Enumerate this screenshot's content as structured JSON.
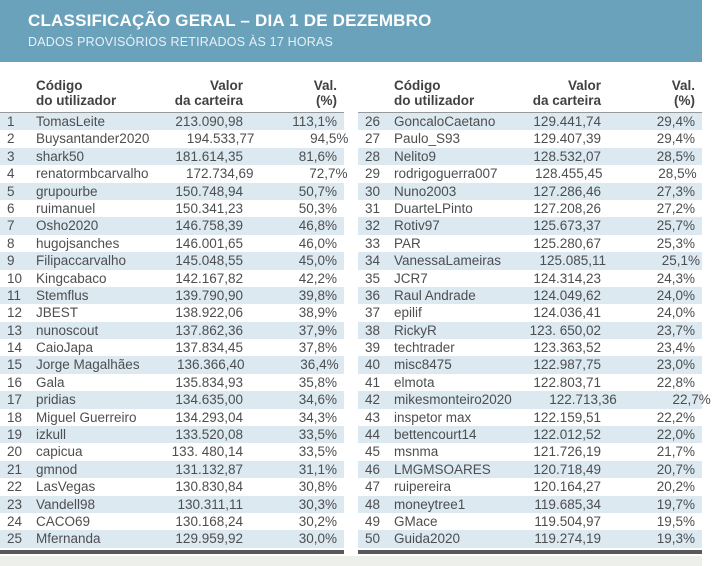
{
  "header": {
    "title": "CLASSIFICAÇÃO GERAL – DIA 1 DE DEZEMBRO",
    "subtitle": "DADOS PROVISÓRIOS RETIRADOS ÀS 17 HORAS"
  },
  "columns": {
    "user_line1": "Código",
    "user_line2": "do utilizador",
    "value_line1": "Valor",
    "value_line2": "da carteira",
    "pct_line1": "Val.",
    "pct_line2": "(%)"
  },
  "colors": {
    "header_bg": "#6AA2BC",
    "title_text": "#FFFFFF",
    "subtitle_text": "#E9F0F4",
    "row_stripe": "#DCE9F1",
    "row_text": "#4D4E50",
    "column_header_text": "#414042",
    "divider_line": "#97999B",
    "bottom_bar": "#58595B"
  },
  "chart_data": {
    "type": "table",
    "title": "CLASSIFICAÇÃO GERAL – DIA 1 DE DEZEMBRO",
    "subtitle": "DADOS PROVISÓRIOS RETIRADOS ÀS 17 HORAS",
    "columns": [
      "#",
      "Código do utilizador",
      "Valor da carteira",
      "Val. (%)"
    ],
    "rows_per_table": 25,
    "rows": [
      [
        "1",
        "TomasLeite",
        "213.090,98",
        "113,1%"
      ],
      [
        "2",
        "Buysantander2020",
        "194.533,77",
        "94,5%"
      ],
      [
        "3",
        "shark50",
        "181.614,35",
        "81,6%"
      ],
      [
        "4",
        "renatormbcarvalho",
        "172.734,69",
        "72,7%"
      ],
      [
        "5",
        "grupourbe",
        "150.748,94",
        "50,7%"
      ],
      [
        "6",
        "ruimanuel",
        "150.341,23",
        "50,3%"
      ],
      [
        "7",
        "Osho2020",
        "146.758,39",
        "46,8%"
      ],
      [
        "8",
        "hugojsanches",
        "146.001,65",
        "46,0%"
      ],
      [
        "9",
        "Filipaccarvalho",
        "145.048,55",
        "45,0%"
      ],
      [
        "10",
        "Kingcabaco",
        "142.167,82",
        "42,2%"
      ],
      [
        "11",
        "Stemflus",
        "139.790,90",
        "39,8%"
      ],
      [
        "12",
        "JBEST",
        "138.922,06",
        "38,9%"
      ],
      [
        "13",
        "nunoscout",
        "137.862,36",
        "37,9%"
      ],
      [
        "14",
        "CaioJapa",
        "137.834,45",
        "37,8%"
      ],
      [
        "15",
        "Jorge Magalhães",
        "136.366,40",
        "36,4%"
      ],
      [
        "16",
        "Gala",
        "135.834,93",
        "35,8%"
      ],
      [
        "17",
        "pridias",
        "134.635,00",
        "34,6%"
      ],
      [
        "18",
        "Miguel Guerreiro",
        "134.293,04",
        "34,3%"
      ],
      [
        "19",
        "izkull",
        "133.520,08",
        "33,5%"
      ],
      [
        "20",
        "capicua",
        "133. 480,14",
        "33,5%"
      ],
      [
        "21",
        "gmnod",
        "131.132,87",
        "31,1%"
      ],
      [
        "22",
        "LasVegas",
        "130.830,84",
        "30,8%"
      ],
      [
        "23",
        "Vandell98",
        "130.311,11",
        "30,3%"
      ],
      [
        "24",
        "CACO69",
        "130.168,24",
        "30,2%"
      ],
      [
        "25",
        "Mfernanda",
        "129.959,92",
        "30,0%"
      ],
      [
        "26",
        "GoncaloCaetano",
        "129.441,74",
        "29,4%"
      ],
      [
        "27",
        "Paulo_S93",
        "129.407,39",
        "29,4%"
      ],
      [
        "28",
        "Nelito9",
        "128.532,07",
        "28,5%"
      ],
      [
        "29",
        "rodrigoguerra007",
        "128.455,45",
        "28,5%"
      ],
      [
        "30",
        "Nuno2003",
        "127.286,46",
        "27,3%"
      ],
      [
        "31",
        "DuarteLPinto",
        "127.208,26",
        "27,2%"
      ],
      [
        "32",
        "Rotiv97",
        "125.673,37",
        "25,7%"
      ],
      [
        "33",
        "PAR",
        "125.280,67",
        "25,3%"
      ],
      [
        "34",
        "VanessaLameiras",
        "125.085,11",
        "25,1%"
      ],
      [
        "35",
        "JCR7",
        "124.314,23",
        "24,3%"
      ],
      [
        "36",
        "Raul Andrade",
        "124.049,62",
        "24,0%"
      ],
      [
        "37",
        "epilif",
        "124.036,41",
        "24,0%"
      ],
      [
        "38",
        "RickyR",
        "123. 650,02",
        "23,7%"
      ],
      [
        "39",
        "techtrader",
        "123.363,52",
        "23,4%"
      ],
      [
        "40",
        "misc8475",
        "122.987,75",
        "23,0%"
      ],
      [
        "41",
        "elmota",
        "122.803,71",
        "22,8%"
      ],
      [
        "42",
        "mikesmonteiro2020",
        "122.713,36",
        "22,7%"
      ],
      [
        "43",
        "inspetor max",
        "122.159,51",
        "22,2%"
      ],
      [
        "44",
        "bettencourt14",
        "122.012,52",
        "22,0%"
      ],
      [
        "45",
        "msnma",
        "121.726,19",
        "21,7%"
      ],
      [
        "46",
        "LMGMSOARES",
        "120.718,49",
        "20,7%"
      ],
      [
        "47",
        "ruipereira",
        "120.164,27",
        "20,2%"
      ],
      [
        "48",
        "moneytree1",
        "119.685,34",
        "19,7%"
      ],
      [
        "49",
        "GMace",
        "119.504,97",
        "19,5%"
      ],
      [
        "50",
        "Guida2020",
        "119.274,19",
        "19,3%"
      ]
    ]
  }
}
